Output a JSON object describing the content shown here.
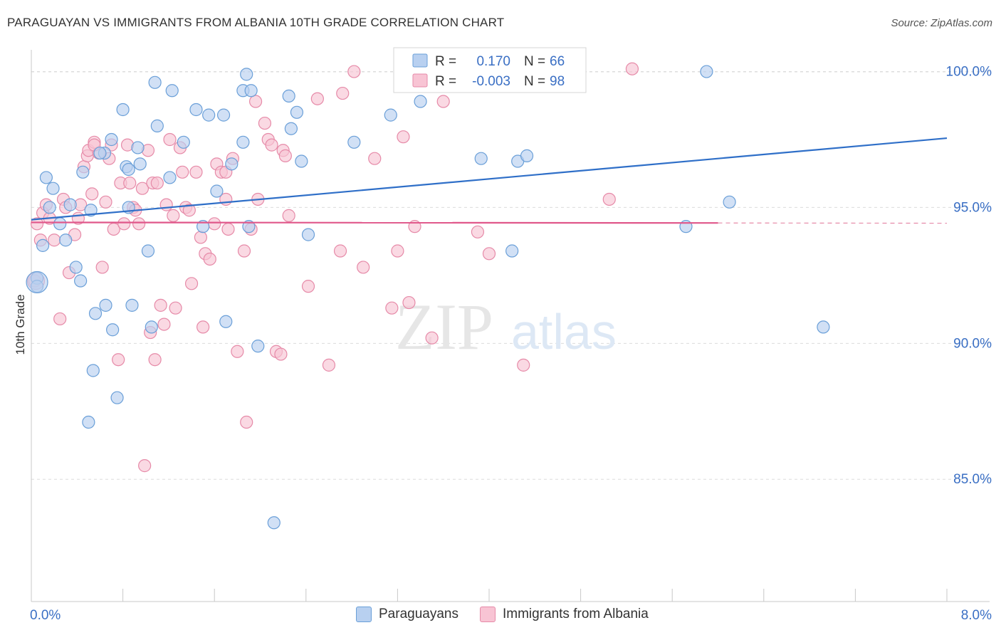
{
  "title": "PARAGUAYAN VS IMMIGRANTS FROM ALBANIA 10TH GRADE CORRELATION CHART",
  "source": "Source: ZipAtlas.com",
  "watermark": {
    "zip": "ZIP",
    "atlas": "atlas"
  },
  "colors": {
    "blue_fill": "#b8d0f0",
    "blue_stroke": "#6a9fd8",
    "blue_line": "#2f6fc8",
    "pink_fill": "#f8c4d4",
    "pink_stroke": "#e68aa8",
    "pink_line": "#e0578a",
    "axis_text": "#3a6fc4",
    "grid": "#dcdcdc"
  },
  "stats_legend": [
    {
      "r_label": "R =",
      "r_value": "0.170",
      "n_label": "N =",
      "n_value": "66"
    },
    {
      "r_label": "R =",
      "r_value": "-0.003",
      "n_label": "N =",
      "n_value": "98"
    }
  ],
  "bottom_legend": [
    "Paraguayans",
    "Immigrants from Albania"
  ],
  "chart_data": {
    "type": "scatter",
    "xlabel": "",
    "ylabel": "10th Grade",
    "xlim": [
      0.0,
      8.0
    ],
    "ylim": [
      80.5,
      100.8
    ],
    "x_tick_labels": [
      "0.0%",
      "8.0%"
    ],
    "y_ticks": [
      85.0,
      90.0,
      95.0,
      100.0
    ],
    "y_tick_labels": [
      "85.0%",
      "90.0%",
      "95.0%",
      "100.0%"
    ],
    "grid": "horizontal dashed",
    "legend_position": "top-center",
    "series": [
      {
        "name": "Paraguayans",
        "trend": {
          "x": [
            0.0,
            8.0
          ],
          "y": [
            94.55,
            97.55
          ]
        },
        "points": [
          [
            0.05,
            92.4
          ],
          [
            0.05,
            92.1
          ],
          [
            0.1,
            93.6
          ],
          [
            0.13,
            96.1
          ],
          [
            0.19,
            95.7
          ],
          [
            0.16,
            95.0
          ],
          [
            0.25,
            94.4
          ],
          [
            0.3,
            93.8
          ],
          [
            0.34,
            95.1
          ],
          [
            0.39,
            92.8
          ],
          [
            0.43,
            92.3
          ],
          [
            0.45,
            96.3
          ],
          [
            0.52,
            94.9
          ],
          [
            0.5,
            87.1
          ],
          [
            0.54,
            89.0
          ],
          [
            0.56,
            91.1
          ],
          [
            0.64,
            97.0
          ],
          [
            0.65,
            91.4
          ],
          [
            0.7,
            97.5
          ],
          [
            0.71,
            90.5
          ],
          [
            0.75,
            88.0
          ],
          [
            0.8,
            98.6
          ],
          [
            0.83,
            96.5
          ],
          [
            0.85,
            96.4
          ],
          [
            0.88,
            91.4
          ],
          [
            0.93,
            97.2
          ],
          [
            0.95,
            96.6
          ],
          [
            1.02,
            93.4
          ],
          [
            1.05,
            90.6
          ],
          [
            1.08,
            99.6
          ],
          [
            1.1,
            98.0
          ],
          [
            1.21,
            96.1
          ],
          [
            1.23,
            99.3
          ],
          [
            1.33,
            97.4
          ],
          [
            1.44,
            98.6
          ],
          [
            1.5,
            94.3
          ],
          [
            1.55,
            98.4
          ],
          [
            1.62,
            95.6
          ],
          [
            1.68,
            98.4
          ],
          [
            1.7,
            90.8
          ],
          [
            1.75,
            96.6
          ],
          [
            1.85,
            97.4
          ],
          [
            1.88,
            99.9
          ],
          [
            1.85,
            99.3
          ],
          [
            1.92,
            99.3
          ],
          [
            1.98,
            89.9
          ],
          [
            1.9,
            94.3
          ],
          [
            2.12,
            83.4
          ],
          [
            2.25,
            99.1
          ],
          [
            2.27,
            97.9
          ],
          [
            2.32,
            98.5
          ],
          [
            2.36,
            96.7
          ],
          [
            2.42,
            94.0
          ],
          [
            2.82,
            97.4
          ],
          [
            3.14,
            98.4
          ],
          [
            3.4,
            98.9
          ],
          [
            3.93,
            96.8
          ],
          [
            4.2,
            93.4
          ],
          [
            4.25,
            96.7
          ],
          [
            4.33,
            96.9
          ],
          [
            5.72,
            94.3
          ],
          [
            5.9,
            100.0
          ],
          [
            6.1,
            95.2
          ],
          [
            6.92,
            90.6
          ],
          [
            0.85,
            95.0
          ],
          [
            0.6,
            97.0
          ]
        ]
      },
      {
        "name": "Immigrants from Albania",
        "trend": {
          "x": [
            0.0,
            6.0
          ],
          "y": [
            94.45,
            94.43
          ],
          "dashed_extension": {
            "x": [
              6.0,
              8.0
            ],
            "y": [
              94.43,
              94.42
            ]
          }
        },
        "points": [
          [
            0.03,
            92.3
          ],
          [
            0.05,
            94.4
          ],
          [
            0.08,
            93.8
          ],
          [
            0.1,
            94.8
          ],
          [
            0.13,
            95.1
          ],
          [
            0.16,
            94.6
          ],
          [
            0.2,
            93.8
          ],
          [
            0.25,
            90.9
          ],
          [
            0.28,
            95.3
          ],
          [
            0.3,
            95.0
          ],
          [
            0.33,
            92.6
          ],
          [
            0.38,
            94.0
          ],
          [
            0.41,
            94.6
          ],
          [
            0.43,
            95.1
          ],
          [
            0.46,
            96.5
          ],
          [
            0.49,
            96.9
          ],
          [
            0.5,
            97.1
          ],
          [
            0.53,
            95.5
          ],
          [
            0.55,
            97.4
          ],
          [
            0.59,
            97.0
          ],
          [
            0.62,
            92.8
          ],
          [
            0.65,
            95.2
          ],
          [
            0.68,
            96.8
          ],
          [
            0.7,
            97.3
          ],
          [
            0.72,
            94.2
          ],
          [
            0.76,
            89.4
          ],
          [
            0.78,
            95.9
          ],
          [
            0.81,
            94.4
          ],
          [
            0.84,
            97.3
          ],
          [
            0.86,
            95.9
          ],
          [
            0.89,
            95.0
          ],
          [
            0.91,
            94.9
          ],
          [
            0.94,
            94.4
          ],
          [
            0.97,
            95.7
          ],
          [
            0.99,
            85.5
          ],
          [
            1.02,
            97.1
          ],
          [
            1.04,
            90.4
          ],
          [
            1.06,
            95.9
          ],
          [
            1.08,
            89.4
          ],
          [
            1.1,
            95.9
          ],
          [
            1.13,
            91.4
          ],
          [
            1.16,
            90.7
          ],
          [
            1.18,
            95.1
          ],
          [
            1.21,
            97.5
          ],
          [
            1.24,
            94.7
          ],
          [
            1.26,
            91.3
          ],
          [
            1.3,
            97.2
          ],
          [
            1.32,
            96.3
          ],
          [
            1.35,
            95.0
          ],
          [
            1.38,
            94.9
          ],
          [
            1.4,
            92.2
          ],
          [
            1.44,
            96.3
          ],
          [
            1.48,
            93.9
          ],
          [
            1.5,
            90.6
          ],
          [
            1.52,
            93.3
          ],
          [
            1.56,
            93.1
          ],
          [
            1.6,
            94.4
          ],
          [
            1.62,
            96.6
          ],
          [
            1.66,
            96.3
          ],
          [
            1.7,
            95.3
          ],
          [
            1.72,
            94.2
          ],
          [
            1.76,
            96.8
          ],
          [
            1.8,
            89.7
          ],
          [
            1.86,
            93.4
          ],
          [
            1.88,
            87.1
          ],
          [
            1.92,
            94.2
          ],
          [
            1.96,
            98.9
          ],
          [
            1.98,
            95.3
          ],
          [
            2.04,
            98.1
          ],
          [
            2.07,
            97.5
          ],
          [
            2.1,
            97.3
          ],
          [
            2.14,
            89.7
          ],
          [
            2.18,
            89.6
          ],
          [
            2.2,
            97.1
          ],
          [
            2.22,
            96.9
          ],
          [
            2.25,
            94.7
          ],
          [
            2.42,
            92.1
          ],
          [
            2.5,
            99.0
          ],
          [
            2.6,
            89.2
          ],
          [
            2.7,
            93.4
          ],
          [
            2.72,
            99.2
          ],
          [
            2.82,
            100.0
          ],
          [
            2.9,
            92.8
          ],
          [
            3.0,
            96.8
          ],
          [
            3.15,
            91.3
          ],
          [
            3.2,
            93.4
          ],
          [
            3.25,
            97.6
          ],
          [
            3.3,
            91.5
          ],
          [
            3.35,
            94.3
          ],
          [
            3.5,
            90.2
          ],
          [
            3.6,
            98.9
          ],
          [
            3.9,
            94.1
          ],
          [
            4.0,
            93.3
          ],
          [
            4.3,
            89.2
          ],
          [
            5.05,
            95.3
          ],
          [
            5.25,
            100.1
          ],
          [
            0.55,
            97.3
          ],
          [
            1.7,
            96.3
          ]
        ]
      }
    ]
  }
}
